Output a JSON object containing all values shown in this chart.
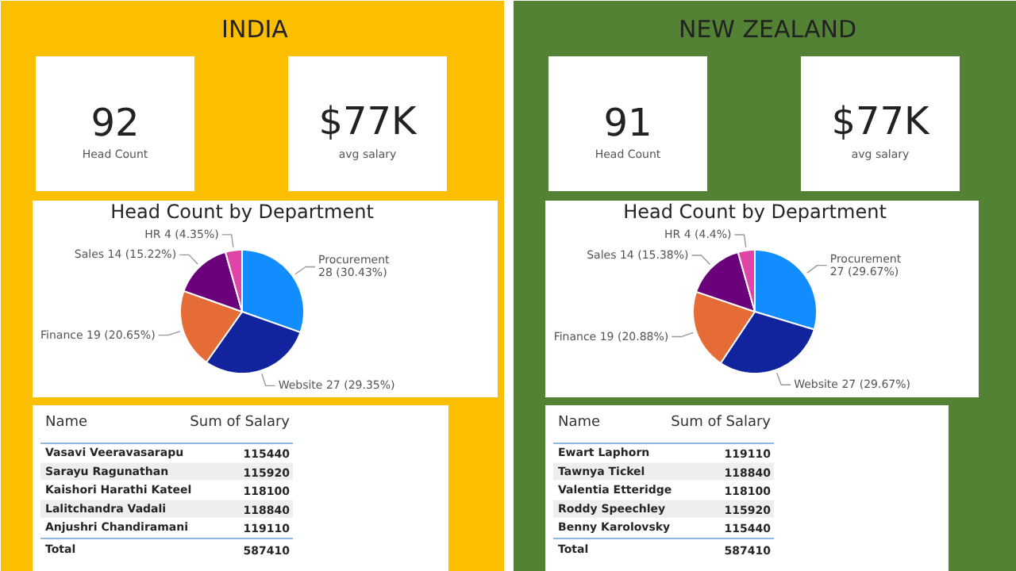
{
  "chart_data": [
    {
      "type": "other",
      "title": "INDIA",
      "annotations": [
        "92",
        "Head Count",
        "$77K",
        "avg salary"
      ]
    },
    {
      "type": "pie",
      "title": "Head Count by Department",
      "categories": [
        "Procurement",
        "Website",
        "Finance",
        "Sales",
        "HR"
      ],
      "values": [
        28,
        27,
        19,
        14,
        4
      ],
      "colors": [
        "#118dff",
        "#12239e",
        "#e66c37",
        "#6b007b",
        "#e044a7"
      ],
      "value_labels": [
        "28 (30.43%)",
        "27 (29.35%)",
        "19 (20.65%)",
        "14 (15.22%)",
        "4 (4.35%)"
      ]
    },
    {
      "type": "other",
      "categories": [
        "Vasavi Veeravasarapu",
        "Sarayu Ragunathan",
        "Kaishori Harathi Kateel",
        "Lalitchandra Vadali",
        "Anjushri Chandiramani"
      ],
      "values": [
        115440,
        115920,
        118100,
        118840,
        119110
      ],
      "data_labels": true,
      "annotations": [
        "Name",
        "Sum of Salary",
        "Total",
        "587410"
      ]
    },
    {
      "type": "other",
      "title": "NEW ZEALAND",
      "annotations": [
        "91",
        "Head Count",
        "$77K",
        "avg salary"
      ]
    },
    {
      "type": "pie",
      "title": "Head Count by Department",
      "categories": [
        "Procurement",
        "Website",
        "Finance",
        "Sales",
        "HR"
      ],
      "values": [
        27,
        27,
        19,
        14,
        4
      ],
      "colors": [
        "#118dff",
        "#12239e",
        "#e66c37",
        "#6b007b",
        "#e044a7"
      ],
      "value_labels": [
        "27 (29.67%)",
        "27 (29.67%)",
        "19 (20.88%)",
        "14 (15.38%)",
        "4 (4.4%)"
      ]
    },
    {
      "type": "other",
      "categories": [
        "Ewart Laphorn",
        "Tawnya Tickel",
        "Valentia Etteridge",
        "Roddy Speechley",
        "Benny Karolovsky"
      ],
      "values": [
        119110,
        118840,
        118100,
        115920,
        115440
      ],
      "data_labels": true,
      "annotations": [
        "Name",
        "Sum of Salary",
        "Total",
        "587410"
      ]
    }
  ]
}
